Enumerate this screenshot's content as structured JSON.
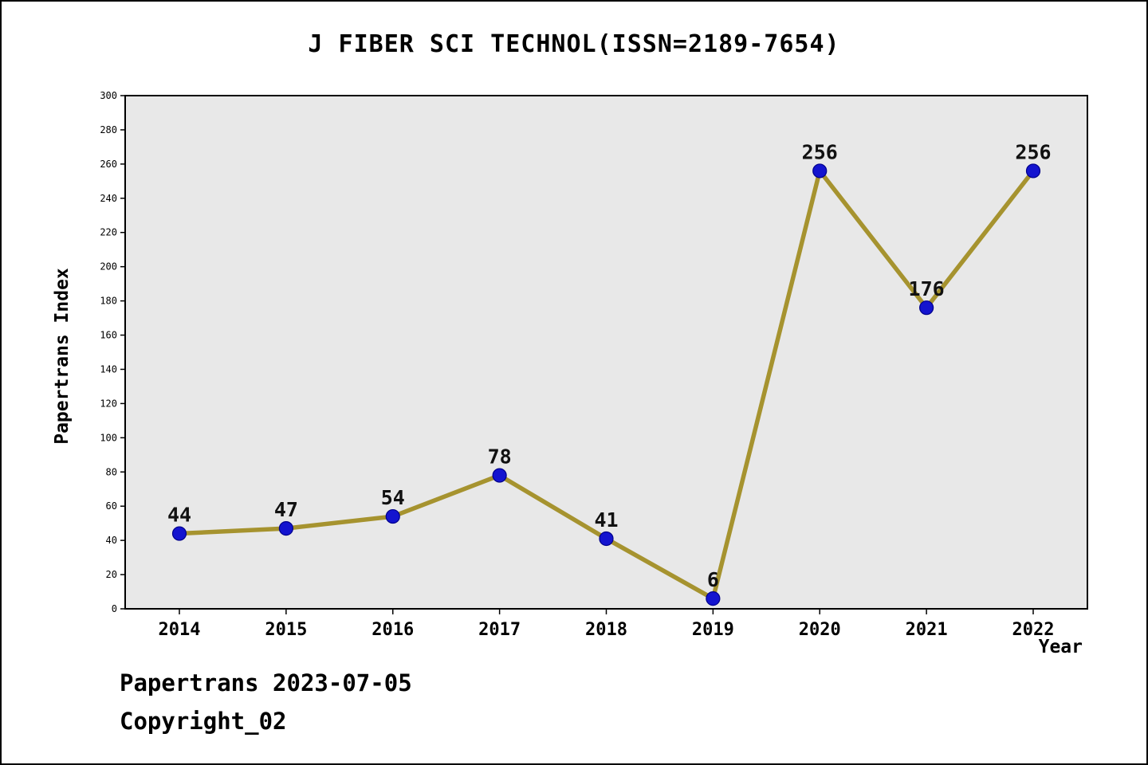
{
  "chart_data": {
    "type": "line",
    "title": "J FIBER SCI TECHNOL(ISSN=2189-7654)",
    "xlabel": "Year",
    "ylabel": "Papertrans Index",
    "categories": [
      "2014",
      "2015",
      "2016",
      "2017",
      "2018",
      "2019",
      "2020",
      "2021",
      "2022"
    ],
    "series": [
      {
        "name": "Papertrans Index",
        "values": [
          44,
          47,
          54,
          78,
          41,
          6,
          256,
          176,
          256
        ]
      }
    ],
    "ylim": [
      0,
      300
    ],
    "ytick_step": 20,
    "grid": false,
    "legend": "none",
    "line_color": "#a6932f",
    "marker_color": "#1414cf",
    "marker_edge_color": "#00008b",
    "plot_bg": "#e8e8e8",
    "axis_color": "#000000"
  },
  "footer": {
    "line1": "Papertrans 2023-07-05",
    "line2": "Copyright_02"
  }
}
